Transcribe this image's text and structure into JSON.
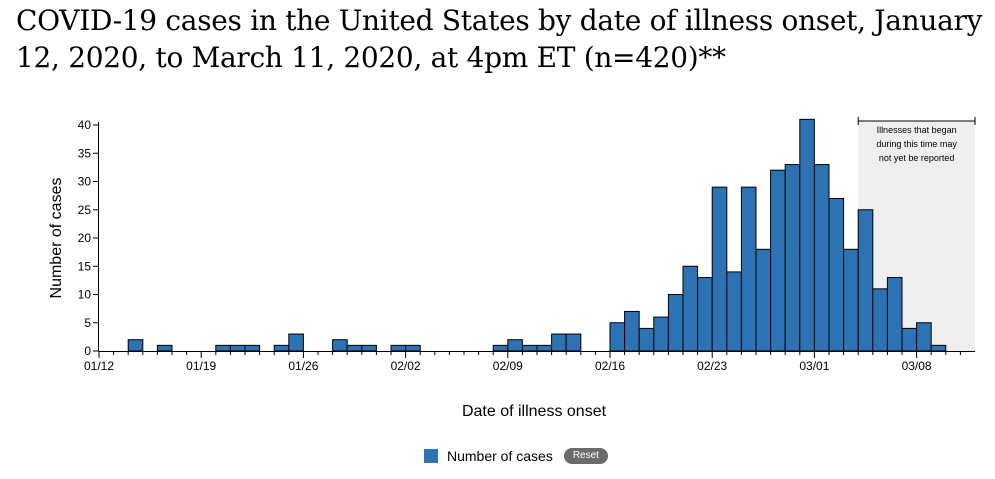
{
  "title": "COVID-19 cases in the United States by date of illness onset, January 12, 2020, to March 11, 2020, at 4pm ET (n=420)**",
  "chart_data": {
    "type": "bar",
    "xlabel": "Date of illness onset",
    "ylabel": "Number of cases",
    "ylim": [
      0,
      40
    ],
    "yticks": [
      0,
      5,
      10,
      15,
      20,
      25,
      30,
      35,
      40
    ],
    "x_tick_labels": [
      "01/12",
      "01/19",
      "01/26",
      "02/02",
      "02/09",
      "02/16",
      "02/23",
      "03/01",
      "03/08"
    ],
    "x_tick_index": [
      0,
      7,
      14,
      21,
      28,
      35,
      42,
      49,
      56
    ],
    "categories": [
      "01/12",
      "01/13",
      "01/14",
      "01/15",
      "01/16",
      "01/17",
      "01/18",
      "01/19",
      "01/20",
      "01/21",
      "01/22",
      "01/23",
      "01/24",
      "01/25",
      "01/26",
      "01/27",
      "01/28",
      "01/29",
      "01/30",
      "01/31",
      "02/01",
      "02/02",
      "02/03",
      "02/04",
      "02/05",
      "02/06",
      "02/07",
      "02/08",
      "02/09",
      "02/10",
      "02/11",
      "02/12",
      "02/13",
      "02/14",
      "02/15",
      "02/16",
      "02/17",
      "02/18",
      "02/19",
      "02/20",
      "02/21",
      "02/22",
      "02/23",
      "02/24",
      "02/25",
      "02/26",
      "02/27",
      "02/28",
      "02/29",
      "03/01",
      "03/02",
      "03/03",
      "03/04",
      "03/05",
      "03/06",
      "03/07",
      "03/08",
      "03/09",
      "03/10",
      "03/11"
    ],
    "series": [
      {
        "name": "Number of cases",
        "color": "#2d72b3",
        "values": [
          0,
          0,
          2,
          0,
          1,
          0,
          0,
          0,
          1,
          1,
          1,
          0,
          1,
          3,
          0,
          0,
          2,
          1,
          1,
          0,
          1,
          1,
          0,
          0,
          0,
          0,
          0,
          1,
          2,
          1,
          1,
          3,
          3,
          0,
          0,
          5,
          7,
          4,
          6,
          10,
          15,
          13,
          29,
          14,
          29,
          18,
          32,
          33,
          41,
          33,
          27,
          18,
          25,
          11,
          13,
          4,
          5,
          1,
          0,
          0
        ]
      }
    ],
    "shaded_region": {
      "from": "03/04",
      "to": "03/11",
      "annotation_lines": [
        "Illnesses that began",
        "during this time may",
        "not yet be reported"
      ]
    },
    "legend_position": "bottom-center",
    "grid": false
  },
  "legend": {
    "label": "Number of cases",
    "reset_label": "Reset",
    "swatch_color": "#2d72b3"
  }
}
